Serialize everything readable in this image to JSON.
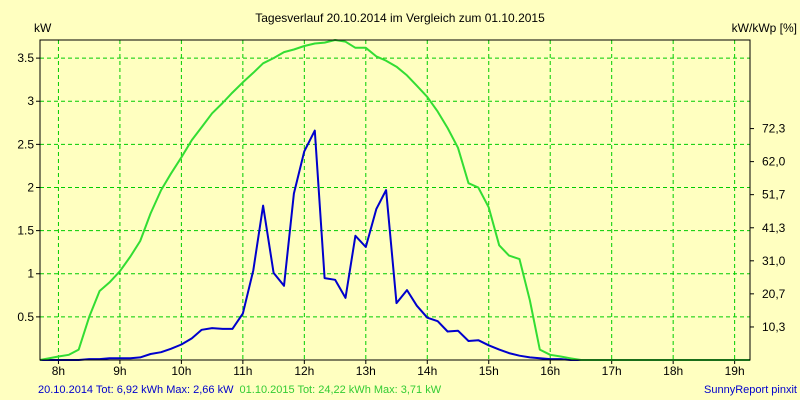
{
  "chart_data": {
    "type": "line",
    "title": "Tagesverlauf 20.10.2014 im Vergleich zum 01.10.2015",
    "ylabel_left": "kW",
    "ylabel_right": "kW/kWp [%]",
    "xlim": [
      7.7,
      19.25
    ],
    "ylim": [
      0,
      3.71
    ],
    "x_ticks": [
      8,
      9,
      10,
      11,
      12,
      13,
      14,
      15,
      16,
      17,
      18,
      19
    ],
    "x_tick_labels": [
      "8h",
      "9h",
      "10h",
      "11h",
      "12h",
      "13h",
      "14h",
      "15h",
      "16h",
      "17h",
      "18h",
      "19h"
    ],
    "y_left_ticks": [
      0.5,
      1,
      1.5,
      2,
      2.5,
      3,
      3.5
    ],
    "y_left_tick_labels": [
      "0.5",
      "1",
      "1.5",
      "2",
      "2.5",
      "3",
      "3.5"
    ],
    "y_right_ticks": [
      0.383,
      0.767,
      1.15,
      1.533,
      1.917,
      2.3,
      2.683
    ],
    "y_right_tick_labels": [
      "10,3",
      "20,7",
      "31,0",
      "41,3",
      "51,7",
      "62,0",
      "72,3"
    ],
    "grid": true,
    "colors": {
      "background": "#ffffc0",
      "plot_background": "#ffffc0",
      "grid": "#00cc00",
      "series_2014": "#0000cc",
      "series_2015": "#33dd33"
    },
    "series": [
      {
        "id": "s2014",
        "x": [
          7.7,
          8.0,
          8.17,
          8.33,
          8.5,
          8.67,
          8.83,
          9.0,
          9.17,
          9.33,
          9.5,
          9.67,
          9.83,
          10.0,
          10.17,
          10.33,
          10.5,
          10.67,
          10.83,
          11.0,
          11.17,
          11.33,
          11.5,
          11.67,
          11.83,
          12.0,
          12.17,
          12.33,
          12.5,
          12.67,
          12.83,
          13.0,
          13.17,
          13.33,
          13.5,
          13.67,
          13.83,
          14.0,
          14.17,
          14.33,
          14.5,
          14.67,
          14.83,
          15.0,
          15.17,
          15.33,
          15.5,
          15.67,
          15.83,
          16.0,
          16.17,
          16.33,
          16.5,
          16.67,
          16.83,
          17.0,
          17.17,
          17.33,
          17.5,
          17.67,
          17.83,
          18.0
        ],
        "y": [
          0,
          0,
          0,
          0,
          0.01,
          0.01,
          0.02,
          0.02,
          0.02,
          0.03,
          0.07,
          0.09,
          0.13,
          0.18,
          0.25,
          0.35,
          0.37,
          0.36,
          0.36,
          0.54,
          1.04,
          1.79,
          1.01,
          0.86,
          1.93,
          2.42,
          2.66,
          0.95,
          0.93,
          0.72,
          1.44,
          1.31,
          1.75,
          1.97,
          0.66,
          0.81,
          0.63,
          0.49,
          0.45,
          0.33,
          0.34,
          0.22,
          0.23,
          0.17,
          0.12,
          0.08,
          0.05,
          0.03,
          0.02,
          0.01,
          0.01,
          0.0,
          0.0,
          0.0,
          0.0,
          0.0,
          0.0,
          0.0,
          0.0,
          0.0,
          0.0,
          0.0
        ]
      },
      {
        "id": "s2015",
        "x": [
          7.7,
          8.0,
          8.17,
          8.33,
          8.5,
          8.67,
          8.83,
          9.0,
          9.17,
          9.33,
          9.5,
          9.67,
          9.83,
          10.0,
          10.17,
          10.33,
          10.5,
          10.67,
          10.83,
          11.0,
          11.17,
          11.33,
          11.5,
          11.67,
          11.83,
          12.0,
          12.17,
          12.33,
          12.5,
          12.67,
          12.83,
          13.0,
          13.17,
          13.33,
          13.5,
          13.67,
          13.83,
          14.0,
          14.17,
          14.33,
          14.5,
          14.67,
          14.83,
          15.0,
          15.17,
          15.33,
          15.5,
          15.67,
          15.83,
          16.0,
          16.17,
          16.33,
          16.5,
          16.67,
          16.83,
          17.0,
          17.17,
          17.33,
          17.5,
          17.67,
          17.83,
          18.0,
          18.17,
          18.33,
          18.5,
          18.67,
          18.83,
          19.0,
          19.17,
          19.25
        ],
        "y": [
          0,
          0.04,
          0.06,
          0.12,
          0.5,
          0.8,
          0.9,
          1.03,
          1.2,
          1.38,
          1.7,
          1.97,
          2.16,
          2.35,
          2.55,
          2.7,
          2.86,
          2.98,
          3.1,
          3.22,
          3.33,
          3.44,
          3.5,
          3.57,
          3.6,
          3.64,
          3.67,
          3.68,
          3.71,
          3.69,
          3.62,
          3.62,
          3.52,
          3.47,
          3.4,
          3.3,
          3.18,
          3.05,
          2.88,
          2.69,
          2.46,
          2.05,
          2.0,
          1.77,
          1.33,
          1.21,
          1.17,
          0.69,
          0.12,
          0.06,
          0.04,
          0.02,
          0.0,
          0.0,
          0.0,
          0.0,
          0.0,
          0.0,
          0.0,
          0.0,
          0.0,
          0.0,
          0.0,
          0.0,
          0.0,
          0.0,
          0.0,
          0.0,
          0.0,
          0.0
        ]
      }
    ]
  },
  "footer": {
    "left_2014": "20.10.2014 Tot: 6,92 kWh Max: 2,66 kW",
    "right_2015": "01.10.2015 Tot: 24,22 kWh Max: 3,71 kW",
    "brand": "SunnyReport pinxit"
  }
}
